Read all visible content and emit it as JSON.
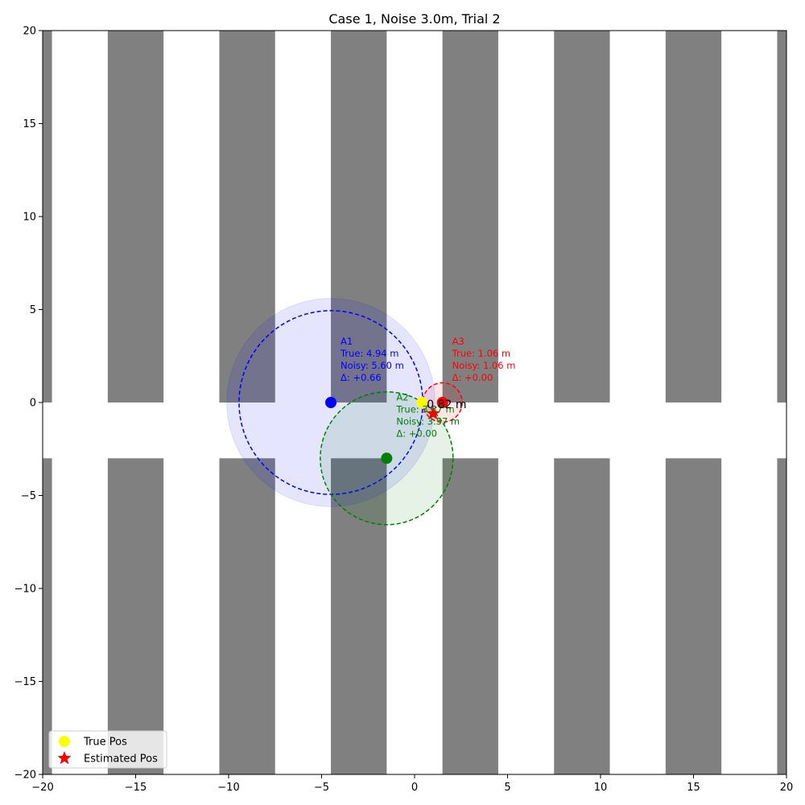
{
  "chart_data": {
    "type": "scatter",
    "title": "Case 1, Noise 3.0m, Trial 2",
    "xlabel": "",
    "ylabel": "",
    "xlim": [
      -20,
      20
    ],
    "ylim": [
      -20,
      20
    ],
    "xticks": [
      -20,
      -15,
      -10,
      -5,
      0,
      5,
      10,
      15,
      20
    ],
    "yticks": [
      -20,
      -15,
      -10,
      -5,
      0,
      5,
      10,
      15,
      20
    ],
    "xtick_labels": [
      "−20",
      "−15",
      "−10",
      "−5",
      "0",
      "5",
      "10",
      "15",
      "20"
    ],
    "ytick_labels": [
      "−20",
      "−15",
      "−10",
      "−5",
      "0",
      "5",
      "10",
      "15",
      "20"
    ],
    "grid": false,
    "legend_position": "lower-left",
    "background_blocks": {
      "color": "#808080",
      "upper_band_y": [
        0,
        20
      ],
      "lower_band_y": [
        -20,
        -3
      ],
      "x_ranges": [
        [
          -20,
          -19.5
        ],
        [
          -16.5,
          -13.5
        ],
        [
          -10.5,
          -7.5
        ],
        [
          -4.5,
          -1.5
        ],
        [
          1.5,
          4.5
        ],
        [
          7.5,
          10.5
        ],
        [
          13.5,
          16.5
        ],
        [
          19.5,
          20
        ]
      ]
    },
    "anchors": [
      {
        "name": "A1",
        "x": -4.5,
        "y": 0,
        "color": "#0000ff",
        "true_dist": 4.94,
        "noisy_dist": 5.6,
        "label_lines": [
          "A1",
          "True: 4.94 m",
          "Noisy: 5.60 m",
          "Δ: +0.66"
        ]
      },
      {
        "name": "A2",
        "x": -1.5,
        "y": -3,
        "color": "#008000",
        "true_dist": 3.57,
        "noisy_dist": 3.57,
        "label_lines": [
          "A2",
          "True: 3.57 m",
          "Noisy: 3.57 m",
          "Δ: +0.00"
        ]
      },
      {
        "name": "A3",
        "x": 1.5,
        "y": 0,
        "color": "#ff0000",
        "true_dist": 1.06,
        "noisy_dist": 1.06,
        "label_lines": [
          "A3",
          "True: 1.06 m",
          "Noisy: 1.06 m",
          "Δ: +0.00"
        ]
      }
    ],
    "true_position": {
      "x": 0.4,
      "y": 0,
      "color": "#ffff00"
    },
    "estimated_position": {
      "x": 1.0,
      "y": -0.6,
      "color": "#ff0000"
    },
    "error_label": "0.82 m",
    "legend": [
      {
        "label": "True Pos",
        "marker": "circle",
        "color": "#ffff00"
      },
      {
        "label": "Estimated Pos",
        "marker": "star",
        "color": "#ff0000"
      }
    ]
  }
}
